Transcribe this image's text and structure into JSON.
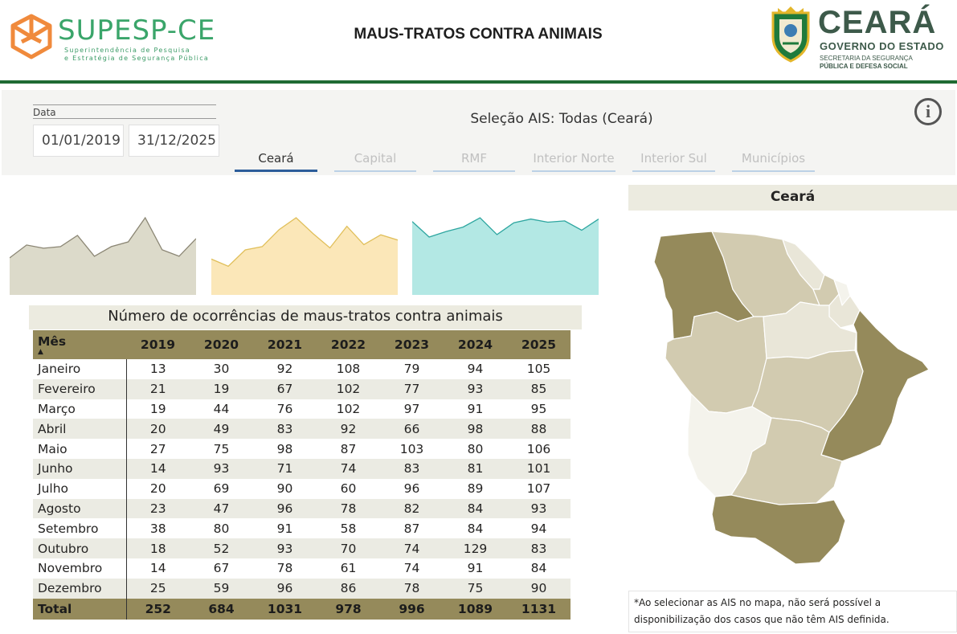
{
  "header": {
    "org_logo_name": "SUPESP-CE",
    "org_logo_subtitle_1": "Superintendência de Pesquisa",
    "org_logo_subtitle_2": "e Estratégia de Segurança Pública",
    "page_title": "MAUS-TRATOS CONTRA ANIMAIS",
    "gov_logo_name": "CEARÁ",
    "gov_logo_subtitle": "GOVERNO DO ESTADO",
    "gov_logo_secretariat_1": "SECRETARIA DA SEGURANÇA",
    "gov_logo_secretariat_2": "PÚBLICA E DEFESA SOCIAL"
  },
  "filters": {
    "date_label": "Data",
    "date_start": "01/01/2019",
    "date_end": "31/12/2025",
    "selection_text": "Seleção AIS: Todas (Ceará)",
    "info_icon": "info-icon",
    "tabs": [
      {
        "label": "Ceará",
        "active": true
      },
      {
        "label": "Capital",
        "active": false
      },
      {
        "label": "RMF",
        "active": false
      },
      {
        "label": "Interior Norte",
        "active": false
      },
      {
        "label": "Interior Sul",
        "active": false
      },
      {
        "label": "Municípios",
        "active": false
      }
    ]
  },
  "colors": {
    "header_rule": "#1f6b33",
    "table_header": "#958a5b",
    "row_band": "#ebebe3",
    "spark_1_fill": "#dcdaca",
    "spark_1_line": "#8b8674",
    "spark_2_fill": "#fbe7b8",
    "spark_2_line": "#e0bf5a",
    "spark_3_fill": "#b3e8e4",
    "spark_3_line": "#2ea6a0",
    "map_dark": "#958a5b",
    "map_mid": "#d2cbb0",
    "map_light": "#e9e6d8",
    "map_lightest": "#f4f3ec"
  },
  "chart_data": [
    {
      "type": "area",
      "values": [
        13,
        21,
        19,
        20,
        27,
        14,
        20,
        23,
        38,
        18,
        14,
        25
      ]
    },
    {
      "type": "area",
      "values": [
        30,
        19,
        44,
        49,
        75,
        93,
        69,
        47,
        80,
        52,
        67,
        59
      ]
    },
    {
      "type": "area",
      "values": [
        92,
        67,
        76,
        83,
        98,
        71,
        90,
        96,
        91,
        93,
        78,
        96
      ]
    }
  ],
  "table": {
    "title": "Número de ocorrências de maus-tratos contra animais",
    "columns": [
      "Mês",
      "2019",
      "2020",
      "2021",
      "2022",
      "2023",
      "2024",
      "2025"
    ],
    "rows": [
      [
        "Janeiro",
        "13",
        "30",
        "92",
        "108",
        "79",
        "94",
        "105"
      ],
      [
        "Fevereiro",
        "21",
        "19",
        "67",
        "102",
        "77",
        "93",
        "85"
      ],
      [
        "Março",
        "19",
        "44",
        "76",
        "102",
        "97",
        "91",
        "95"
      ],
      [
        "Abril",
        "20",
        "49",
        "83",
        "92",
        "66",
        "98",
        "88"
      ],
      [
        "Maio",
        "27",
        "75",
        "98",
        "87",
        "103",
        "80",
        "106"
      ],
      [
        "Junho",
        "14",
        "93",
        "71",
        "74",
        "83",
        "81",
        "101"
      ],
      [
        "Julho",
        "20",
        "69",
        "90",
        "60",
        "96",
        "89",
        "107"
      ],
      [
        "Agosto",
        "23",
        "47",
        "96",
        "78",
        "82",
        "84",
        "93"
      ],
      [
        "Setembro",
        "38",
        "80",
        "91",
        "58",
        "87",
        "84",
        "94"
      ],
      [
        "Outubro",
        "18",
        "52",
        "93",
        "70",
        "74",
        "129",
        "83"
      ],
      [
        "Novembro",
        "14",
        "67",
        "78",
        "61",
        "74",
        "91",
        "84"
      ],
      [
        "Dezembro",
        "25",
        "59",
        "96",
        "86",
        "78",
        "75",
        "90"
      ]
    ],
    "total": [
      "Total",
      "252",
      "684",
      "1031",
      "978",
      "996",
      "1089",
      "1131"
    ]
  },
  "map": {
    "title": "Ceará",
    "note": "*Ao selecionar as AIS no mapa, não será possível a disponibilização dos casos que não têm AIS definida."
  }
}
